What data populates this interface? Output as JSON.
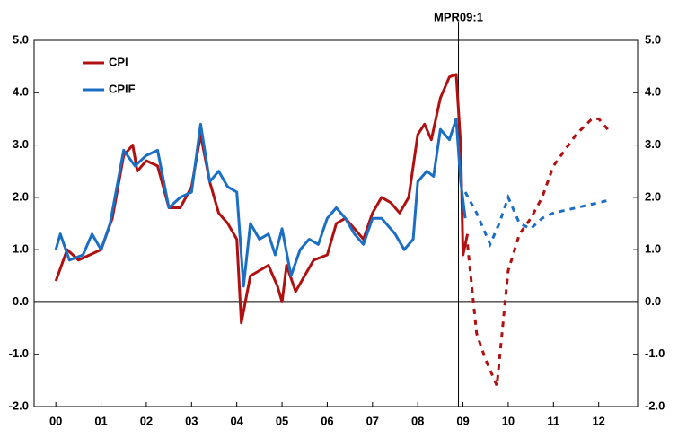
{
  "chart_data": {
    "type": "line",
    "annotation": {
      "text": "MPR09:1",
      "x": 2008.9
    },
    "xlim": [
      1999.52,
      2012.86
    ],
    "xticks": [
      {
        "value": 2000,
        "label": "00"
      },
      {
        "value": 2001,
        "label": "01"
      },
      {
        "value": 2002,
        "label": "02"
      },
      {
        "value": 2003,
        "label": "03"
      },
      {
        "value": 2004,
        "label": "04"
      },
      {
        "value": 2005,
        "label": "05"
      },
      {
        "value": 2006,
        "label": "06"
      },
      {
        "value": 2007,
        "label": "07"
      },
      {
        "value": 2008,
        "label": "08"
      },
      {
        "value": 2009,
        "label": "09"
      },
      {
        "value": 2010,
        "label": "10"
      },
      {
        "value": 2011,
        "label": "11"
      },
      {
        "value": 2012,
        "label": "12"
      }
    ],
    "ylim": [
      -2,
      5
    ],
    "yticks": [
      {
        "value": 5,
        "label": "5.0"
      },
      {
        "value": 4,
        "label": "4.0"
      },
      {
        "value": 3,
        "label": "3.0"
      },
      {
        "value": 2,
        "label": "2.0"
      },
      {
        "value": 1,
        "label": "1.0"
      },
      {
        "value": 0,
        "label": "0.0"
      },
      {
        "value": -1,
        "label": "-1.0"
      },
      {
        "value": -2,
        "label": "-2.0"
      }
    ],
    "grid": false,
    "series": [
      {
        "name": "CPI",
        "color": "#b01010",
        "x": [
          2000.0,
          2000.25,
          2000.5,
          2000.75,
          2001.0,
          2001.25,
          2001.5,
          2001.7,
          2001.8,
          2002.0,
          2002.25,
          2002.5,
          2002.75,
          2003.0,
          2003.2,
          2003.4,
          2003.6,
          2003.8,
          2004.0,
          2004.1,
          2004.3,
          2004.5,
          2004.7,
          2004.9,
          2005.0,
          2005.1,
          2005.3,
          2005.5,
          2005.7,
          2006.0,
          2006.2,
          2006.4,
          2006.6,
          2006.8,
          2007.0,
          2007.2,
          2007.4,
          2007.6,
          2007.8,
          2008.0,
          2008.15,
          2008.3,
          2008.5,
          2008.7,
          2008.85,
          2008.95,
          2009.0,
          2009.1
        ],
        "values": [
          0.4,
          1.0,
          0.8,
          0.9,
          1.0,
          1.6,
          2.8,
          3.0,
          2.5,
          2.7,
          2.6,
          1.8,
          1.8,
          2.2,
          3.2,
          2.3,
          1.7,
          1.5,
          1.2,
          -0.4,
          0.5,
          0.6,
          0.7,
          0.3,
          0.0,
          0.7,
          0.2,
          0.5,
          0.8,
          0.9,
          1.5,
          1.6,
          1.4,
          1.2,
          1.7,
          2.0,
          1.9,
          1.7,
          2.0,
          3.2,
          3.4,
          3.1,
          3.9,
          4.3,
          4.35,
          3.0,
          0.9,
          1.3
        ],
        "forecast": {
          "x": [
            2009.1,
            2009.3,
            2009.5,
            2009.75,
            2010.0,
            2010.25,
            2010.5,
            2010.75,
            2011.0,
            2011.5,
            2011.85,
            2012.0,
            2012.2
          ],
          "values": [
            1.1,
            -0.6,
            -1.1,
            -1.6,
            0.6,
            1.3,
            1.6,
            2.0,
            2.6,
            3.2,
            3.5,
            3.5,
            3.3
          ]
        }
      },
      {
        "name": "CPIF",
        "color": "#1a6fc4",
        "x": [
          2000.0,
          2000.1,
          2000.3,
          2000.6,
          2000.8,
          2001.0,
          2001.2,
          2001.5,
          2001.75,
          2002.0,
          2002.25,
          2002.5,
          2002.75,
          2003.0,
          2003.2,
          2003.4,
          2003.6,
          2003.8,
          2004.0,
          2004.15,
          2004.3,
          2004.5,
          2004.7,
          2004.85,
          2005.0,
          2005.2,
          2005.4,
          2005.6,
          2005.8,
          2006.0,
          2006.2,
          2006.4,
          2006.6,
          2006.8,
          2007.0,
          2007.2,
          2007.5,
          2007.7,
          2007.9,
          2008.0,
          2008.2,
          2008.35,
          2008.5,
          2008.7,
          2008.85,
          2008.95,
          2009.05
        ],
        "values": [
          1.0,
          1.3,
          0.8,
          0.9,
          1.3,
          1.0,
          1.5,
          2.9,
          2.6,
          2.8,
          2.9,
          1.8,
          2.0,
          2.1,
          3.4,
          2.3,
          2.5,
          2.2,
          2.1,
          0.3,
          1.5,
          1.2,
          1.3,
          0.9,
          1.4,
          0.5,
          1.0,
          1.2,
          1.1,
          1.6,
          1.8,
          1.6,
          1.3,
          1.1,
          1.6,
          1.6,
          1.3,
          1.0,
          1.2,
          2.3,
          2.5,
          2.4,
          3.3,
          3.1,
          3.5,
          2.3,
          1.6
        ],
        "forecast": {
          "x": [
            2009.05,
            2009.3,
            2009.6,
            2009.8,
            2010.0,
            2010.25,
            2010.5,
            2010.75,
            2011.0,
            2011.5,
            2012.0,
            2012.25
          ],
          "values": [
            2.1,
            1.7,
            1.1,
            1.5,
            2.0,
            1.5,
            1.4,
            1.6,
            1.7,
            1.8,
            1.9,
            1.95
          ]
        }
      }
    ]
  }
}
